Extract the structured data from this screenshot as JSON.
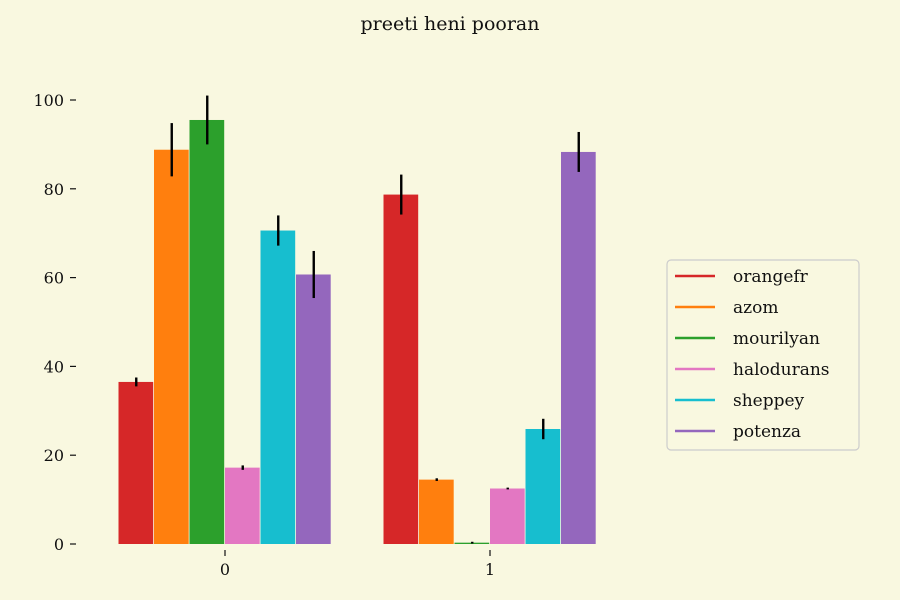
{
  "chart_data": {
    "type": "bar",
    "title": "preeti heni pooran",
    "xlabel": "",
    "ylabel": "",
    "categories": [
      "0",
      "1"
    ],
    "ylim": [
      0,
      100
    ],
    "yticks": [
      0,
      20,
      40,
      60,
      80,
      100
    ],
    "grid": false,
    "legend_placement": "right",
    "series": [
      {
        "name": "orangefr",
        "color": "#d62728",
        "values": [
          36.5,
          78.7
        ],
        "errors": [
          1.0,
          4.5
        ]
      },
      {
        "name": "azom",
        "color": "#ff7f0e",
        "values": [
          88.8,
          14.5
        ],
        "errors": [
          6.0,
          0.3
        ]
      },
      {
        "name": "mourilyan",
        "color": "#2ca02c",
        "values": [
          95.5,
          0.3
        ],
        "errors": [
          5.5,
          0.2
        ]
      },
      {
        "name": "halodurans",
        "color": "#e377c2",
        "values": [
          17.2,
          12.5
        ],
        "errors": [
          0.5,
          0.2
        ]
      },
      {
        "name": "sheppey",
        "color": "#17becf",
        "values": [
          70.6,
          25.9
        ],
        "errors": [
          3.4,
          2.3
        ]
      },
      {
        "name": "potenza",
        "color": "#9467bd",
        "values": [
          60.7,
          88.3
        ],
        "errors": [
          5.3,
          4.5
        ]
      }
    ]
  }
}
